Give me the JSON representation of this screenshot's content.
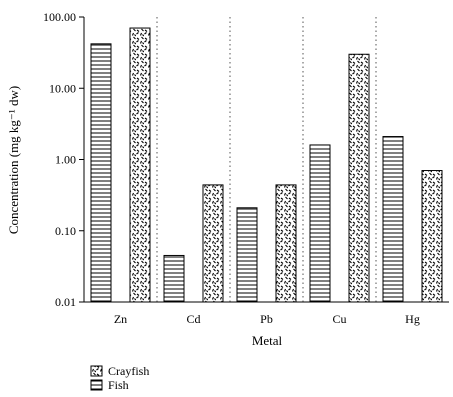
{
  "chart_data": {
    "type": "bar",
    "y_scale": "log",
    "ylim": [
      0.01,
      100
    ],
    "grid": "vertical dotted separators between categories",
    "legend_placement": "bottom-left",
    "xlabel": "Metal",
    "ylabel": "Concentration (mg kg⁻¹ dw)",
    "y_ticks": [
      "100.00",
      "10.00",
      "1.00",
      "0.10",
      "0.01"
    ],
    "categories": [
      "Zn",
      "Cd",
      "Pb",
      "Cu",
      "Hg"
    ],
    "series": [
      {
        "name": "Fish",
        "pattern": "horizontal-lines",
        "values": [
          42,
          0.045,
          0.21,
          1.6,
          2.1
        ]
      },
      {
        "name": "Crayfish",
        "pattern": "speckle",
        "values": [
          70,
          0.44,
          0.44,
          30,
          0.7
        ]
      }
    ],
    "legend_order": [
      "Crayfish",
      "Fish"
    ]
  }
}
